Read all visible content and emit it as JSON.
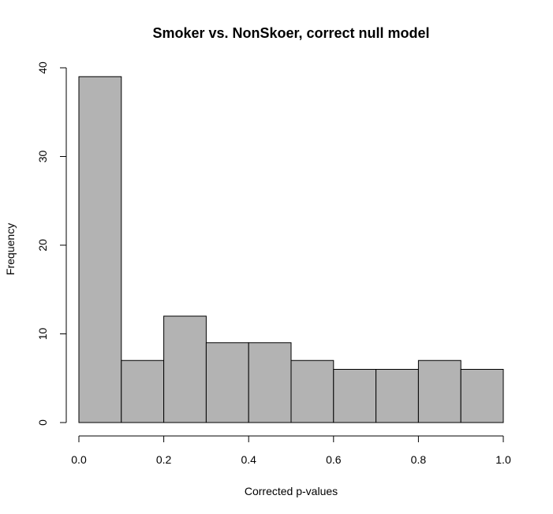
{
  "chart_data": {
    "type": "bar",
    "title": "Smoker vs. NonSkoer, correct null model",
    "xlabel": "Corrected p-values",
    "ylabel": "Frequency",
    "bins": [
      {
        "start": 0.0,
        "end": 0.1,
        "count": 39
      },
      {
        "start": 0.1,
        "end": 0.2,
        "count": 7
      },
      {
        "start": 0.2,
        "end": 0.3,
        "count": 12
      },
      {
        "start": 0.3,
        "end": 0.4,
        "count": 9
      },
      {
        "start": 0.4,
        "end": 0.5,
        "count": 9
      },
      {
        "start": 0.5,
        "end": 0.6,
        "count": 7
      },
      {
        "start": 0.6,
        "end": 0.7,
        "count": 6
      },
      {
        "start": 0.7,
        "end": 0.8,
        "count": 6
      },
      {
        "start": 0.8,
        "end": 0.9,
        "count": 7
      },
      {
        "start": 0.9,
        "end": 1.0,
        "count": 6
      }
    ],
    "x_ticks": [
      "0.0",
      "0.2",
      "0.4",
      "0.6",
      "0.8",
      "1.0"
    ],
    "y_ticks": [
      "0",
      "10",
      "20",
      "30",
      "40"
    ],
    "xlim": [
      0,
      1
    ],
    "ylim": [
      0,
      40
    ],
    "grid": false,
    "bar_fill": "#b3b3b3",
    "bar_stroke": "#000000"
  }
}
